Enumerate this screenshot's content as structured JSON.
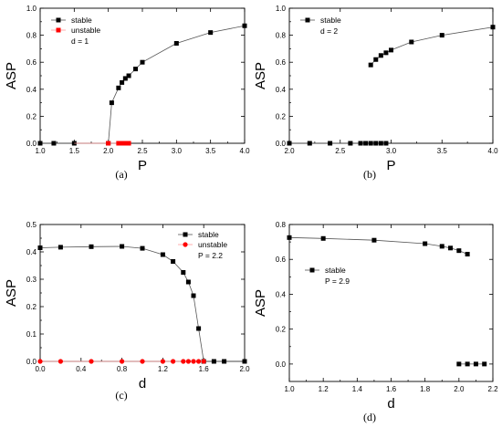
{
  "chart_data": [
    {
      "id": "a",
      "caption": "(a)",
      "type": "line",
      "xlabel": "P",
      "ylabel": "ASP",
      "xlim": [
        1.0,
        4.0
      ],
      "ylim": [
        0.0,
        1.0
      ],
      "xticks": [
        1.0,
        1.5,
        2.0,
        2.5,
        3.0,
        3.5,
        4.0
      ],
      "yticks": [
        0.0,
        0.2,
        0.4,
        0.6,
        0.8,
        1.0
      ],
      "xtick_labels": [
        "1.0",
        "1.5",
        "2.0",
        "2.5",
        "3.0",
        "3.5",
        "4.0"
      ],
      "ytick_labels": [
        "0.0",
        "0.2",
        "0.4",
        "0.6",
        "0.8",
        "1.0"
      ],
      "legend_position": "top-left",
      "annotation": "d = 1",
      "series": [
        {
          "name": "stable",
          "color": "#000000",
          "marker": "square",
          "segments": [
            {
              "x": [
                1.0,
                1.2,
                1.5
              ],
              "y": [
                0,
                0,
                0
              ]
            },
            {
              "x": [
                2.0,
                2.05,
                2.15,
                2.2,
                2.25,
                2.3,
                2.4,
                2.5,
                3.0,
                3.5,
                4.0
              ],
              "y": [
                0,
                0.3,
                0.41,
                0.45,
                0.48,
                0.5,
                0.55,
                0.6,
                0.74,
                0.82,
                0.87
              ]
            }
          ]
        },
        {
          "name": "unstable",
          "color": "#ff0000",
          "marker": "square",
          "segments": [
            {
              "x": [
                1.5,
                2.0,
                2.15,
                2.2,
                2.25,
                2.3
              ],
              "y": [
                0,
                0,
                0,
                0,
                0,
                0
              ],
              "marker_from": 1
            }
          ]
        }
      ]
    },
    {
      "id": "b",
      "caption": "(b)",
      "type": "line",
      "xlabel": "P",
      "ylabel": "ASP",
      "xlim": [
        2.0,
        4.0
      ],
      "ylim": [
        0.0,
        1.0
      ],
      "xticks": [
        2.0,
        2.5,
        3.0,
        3.5,
        4.0
      ],
      "yticks": [
        0.0,
        0.2,
        0.4,
        0.6,
        0.8,
        1.0
      ],
      "xtick_labels": [
        "2.0",
        "2.5",
        "3.0",
        "3.5",
        "4.0"
      ],
      "ytick_labels": [
        "0.0",
        "0.2",
        "0.4",
        "0.6",
        "0.8",
        "1.0"
      ],
      "legend_position": "top-left",
      "annotation": "d = 2",
      "series": [
        {
          "name": "stable",
          "color": "#000000",
          "marker": "square",
          "segments": [
            {
              "x": [
                2.0,
                2.2,
                2.4,
                2.6,
                2.7,
                2.75,
                2.8,
                2.85,
                2.9,
                2.95
              ],
              "y": [
                0,
                0,
                0,
                0,
                0,
                0,
                0,
                0,
                0,
                0
              ]
            },
            {
              "x": [
                2.8,
                2.85,
                2.9,
                2.95,
                3.0,
                3.2,
                3.5,
                4.0
              ],
              "y": [
                0.58,
                0.62,
                0.65,
                0.67,
                0.69,
                0.75,
                0.8,
                0.86
              ]
            }
          ]
        }
      ]
    },
    {
      "id": "c",
      "caption": "(c)",
      "type": "line",
      "xlabel": "d",
      "ylabel": "ASP",
      "xlim": [
        0.0,
        2.0
      ],
      "ylim": [
        0.0,
        0.5
      ],
      "xticks": [
        0.0,
        0.4,
        0.8,
        1.2,
        1.6,
        2.0
      ],
      "yticks": [
        0.0,
        0.1,
        0.2,
        0.3,
        0.4,
        0.5
      ],
      "xtick_labels": [
        "0.0",
        "0.4",
        "0.8",
        "1.2",
        "1.6",
        "2.0"
      ],
      "ytick_labels": [
        "0.0",
        "0.1",
        "0.2",
        "0.3",
        "0.4",
        "0.5"
      ],
      "legend_position": "top-right",
      "annotation": "P = 2.2",
      "series": [
        {
          "name": "stable",
          "color": "#000000",
          "marker": "square",
          "segments": [
            {
              "x": [
                0.0,
                0.2,
                0.5,
                0.8,
                1.0,
                1.2,
                1.3,
                1.4,
                1.45,
                1.5,
                1.55,
                1.6,
                1.7,
                1.8,
                2.0
              ],
              "y": [
                0.415,
                0.417,
                0.419,
                0.42,
                0.413,
                0.39,
                0.365,
                0.325,
                0.29,
                0.24,
                0.12,
                0,
                0,
                0,
                0
              ]
            }
          ]
        },
        {
          "name": "unstable",
          "color": "#ff0000",
          "marker": "circle",
          "segments": [
            {
              "x": [
                0.0,
                0.2,
                0.5,
                0.8,
                1.0,
                1.2,
                1.3,
                1.4,
                1.45,
                1.5,
                1.55,
                1.6
              ],
              "y": [
                0,
                0,
                0,
                0,
                0,
                0,
                0,
                0,
                0,
                0,
                0,
                0
              ]
            }
          ]
        }
      ]
    },
    {
      "id": "d",
      "caption": "(d)",
      "type": "line",
      "xlabel": "d",
      "ylabel": "ASP",
      "xlim": [
        1.0,
        2.2
      ],
      "ylim": [
        -0.1,
        0.8
      ],
      "xticks": [
        1.0,
        1.2,
        1.4,
        1.6,
        1.8,
        2.0,
        2.2
      ],
      "yticks": [
        0.0,
        0.2,
        0.4,
        0.6,
        0.8
      ],
      "xtick_labels": [
        "1.0",
        "1.2",
        "1.4",
        "1.6",
        "1.8",
        "2.0",
        "2.2"
      ],
      "ytick_labels": [
        "0.0",
        "0.2",
        "0.4",
        "0.6",
        "0.8"
      ],
      "legend_position": "center-left",
      "annotation": "P = 2.9",
      "series": [
        {
          "name": "stable",
          "color": "#000000",
          "marker": "square",
          "segments": [
            {
              "x": [
                1.0,
                1.2,
                1.5,
                1.8,
                1.9,
                1.95,
                2.0,
                2.05
              ],
              "y": [
                0.725,
                0.72,
                0.71,
                0.69,
                0.675,
                0.665,
                0.65,
                0.63
              ]
            },
            {
              "x": [
                2.0,
                2.05,
                2.1,
                2.15
              ],
              "y": [
                0,
                0,
                0,
                0
              ]
            }
          ]
        }
      ]
    }
  ]
}
